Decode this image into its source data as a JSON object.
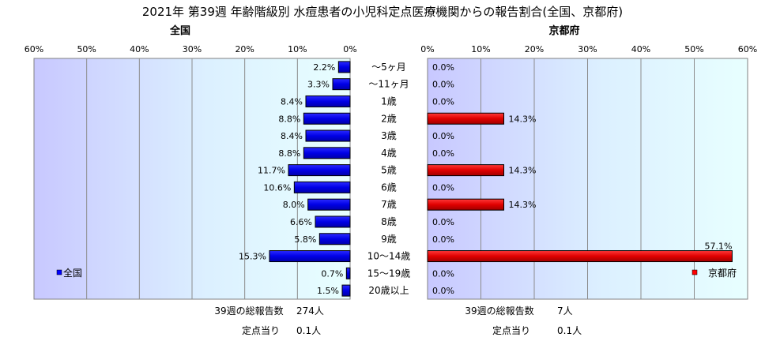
{
  "title": "2021年 第39週 年齢階級別 水痘患者の小児科定点医療機関からの報告割合(全国、京都府)",
  "chart_data": [
    {
      "panel": "全国",
      "type": "bar",
      "orientation": "horizontal",
      "direction": "right-to-left",
      "title": "全国",
      "categories": [
        "～5ヶ月",
        "～11ヶ月",
        "1歳",
        "2歳",
        "3歳",
        "4歳",
        "5歳",
        "6歳",
        "7歳",
        "8歳",
        "9歳",
        "10～14歳",
        "15～19歳",
        "20歳以上"
      ],
      "series": [
        {
          "name": "全国",
          "color": "#0000ff",
          "values": [
            2.2,
            3.3,
            8.4,
            8.8,
            8.4,
            8.8,
            11.7,
            10.6,
            8.0,
            6.6,
            5.8,
            15.3,
            0.7,
            1.5
          ],
          "labels": [
            "2.2%",
            "3.3%",
            "8.4%",
            "8.8%",
            "8.4%",
            "8.8%",
            "11.7%",
            "10.6%",
            "8.0%",
            "6.6%",
            "5.8%",
            "15.3%",
            "0.7%",
            "1.5%"
          ]
        }
      ],
      "x_ticks": [
        "60%",
        "50%",
        "40%",
        "30%",
        "20%",
        "10%",
        "0%"
      ],
      "xlim": [
        0,
        60
      ],
      "grid": true,
      "legend_position": "bottom-left",
      "summary": {
        "total_label": "39週の総報告数",
        "total_value": "274人",
        "per_label": "定点当り",
        "per_value": "0.1人"
      }
    },
    {
      "panel": "京都府",
      "type": "bar",
      "orientation": "horizontal",
      "direction": "left-to-right",
      "title": "京都府",
      "categories": [
        "～5ヶ月",
        "～11ヶ月",
        "1歳",
        "2歳",
        "3歳",
        "4歳",
        "5歳",
        "6歳",
        "7歳",
        "8歳",
        "9歳",
        "10～14歳",
        "15～19歳",
        "20歳以上"
      ],
      "series": [
        {
          "name": "京都府",
          "color": "#ff0000",
          "values": [
            0.0,
            0.0,
            0.0,
            14.3,
            0.0,
            0.0,
            14.3,
            0.0,
            14.3,
            0.0,
            0.0,
            57.1,
            0.0,
            0.0
          ],
          "labels": [
            "0.0%",
            "0.0%",
            "0.0%",
            "14.3%",
            "0.0%",
            "0.0%",
            "14.3%",
            "0.0%",
            "14.3%",
            "0.0%",
            "0.0%",
            "57.1%",
            "0.0%",
            "0.0%"
          ]
        }
      ],
      "x_ticks": [
        "0%",
        "10%",
        "20%",
        "30%",
        "40%",
        "50%",
        "60%"
      ],
      "xlim": [
        0,
        60
      ],
      "grid": true,
      "legend_position": "bottom-right",
      "summary": {
        "total_label": "39週の総報告数",
        "total_value": "7人",
        "per_label": "定点当り",
        "per_value": "0.1人"
      }
    }
  ]
}
